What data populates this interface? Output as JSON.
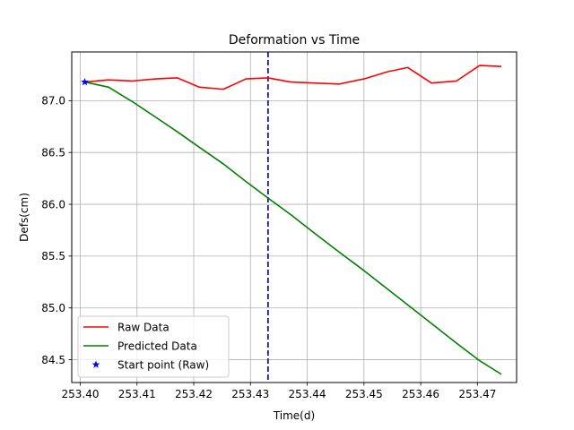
{
  "chart_data": {
    "type": "line",
    "title": "Deformation vs Time",
    "xlabel": "Time(d)",
    "ylabel": "Defs(cm)",
    "xlim": [
      253.3985,
      253.4769
    ],
    "ylim": [
      84.28,
      87.47
    ],
    "xticks": [
      253.4,
      253.41,
      253.42,
      253.43,
      253.44,
      253.45,
      253.46,
      253.47
    ],
    "xtick_labels": [
      "253.40",
      "253.41",
      "253.42",
      "253.43",
      "253.44",
      "253.45",
      "253.46",
      "253.47"
    ],
    "yticks": [
      84.5,
      85.0,
      85.5,
      86.0,
      86.5,
      87.0
    ],
    "ytick_labels": [
      "84.5",
      "85.0",
      "85.5",
      "86.0",
      "86.5",
      "87.0"
    ],
    "grid": true,
    "legend_position": "lower-left",
    "vline": {
      "x": 253.4331,
      "color": "#00008b",
      "style": "dashed"
    },
    "series": [
      {
        "name": "Raw Data",
        "color": "#ff0000",
        "marker": "line",
        "x": [
          253.4008,
          253.405,
          253.4092,
          253.4133,
          253.4171,
          253.421,
          253.4252,
          253.4292,
          253.4331,
          253.4371,
          253.4413,
          253.4456,
          253.45,
          253.4542,
          253.4577,
          253.4619,
          253.4663,
          253.4704,
          253.4742
        ],
        "y": [
          87.18,
          87.2,
          87.19,
          87.21,
          87.22,
          87.13,
          87.11,
          87.21,
          87.22,
          87.18,
          87.17,
          87.16,
          87.21,
          87.28,
          87.32,
          87.17,
          87.19,
          87.34,
          87.33
        ]
      },
      {
        "name": "Predicted Data",
        "color": "#008000",
        "marker": "line",
        "x": [
          253.4008,
          253.405,
          253.4092,
          253.4133,
          253.4171,
          253.421,
          253.4252,
          253.4292,
          253.4331,
          253.4371,
          253.4413,
          253.4456,
          253.45,
          253.4542,
          253.4577,
          253.4619,
          253.4663,
          253.4704,
          253.4742
        ],
        "y": [
          87.18,
          87.13,
          86.99,
          86.84,
          86.7,
          86.55,
          86.39,
          86.22,
          86.06,
          85.9,
          85.72,
          85.54,
          85.36,
          85.18,
          85.03,
          84.85,
          84.66,
          84.49,
          84.36
        ]
      },
      {
        "name": "Start point (Raw)",
        "color": "#0000ff",
        "marker": "star",
        "x": [
          253.4008
        ],
        "y": [
          87.18
        ]
      }
    ]
  }
}
